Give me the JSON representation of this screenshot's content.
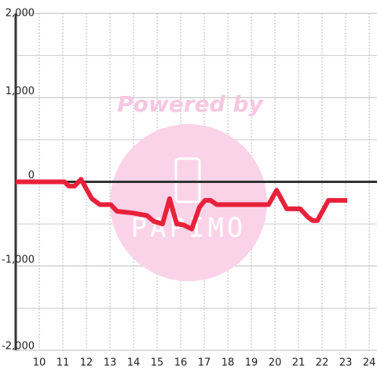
{
  "chart_data": {
    "type": "line",
    "watermark": "Powered by",
    "logo": "PAPIMO",
    "x": [
      9.0,
      11.07,
      11.25,
      11.5,
      11.77,
      12.23,
      12.57,
      13.03,
      13.3,
      13.97,
      14.57,
      14.87,
      15.23,
      15.53,
      15.83,
      16.1,
      16.47,
      16.8,
      17.03,
      17.27,
      17.53,
      19.73,
      20.07,
      20.5,
      21.07,
      21.4,
      21.6,
      21.8,
      22.27,
      23.07
    ],
    "series": [
      {
        "color": "#e8213a",
        "values": [
          0,
          0,
          -50,
          -50,
          30,
          -200,
          -270,
          -270,
          -350,
          -370,
          -400,
          -470,
          -500,
          -200,
          -500,
          -510,
          -560,
          -300,
          -220,
          -220,
          -270,
          -270,
          -100,
          -320,
          -320,
          -420,
          -460,
          -460,
          -220,
          -220
        ]
      }
    ],
    "xlim": [
      9,
      24.33
    ],
    "xticks": [
      10,
      11,
      12,
      13,
      14,
      15,
      16,
      17,
      18,
      19,
      20,
      21,
      22,
      23,
      24
    ],
    "ylim": [
      -2000,
      2000
    ],
    "yticks": [
      {
        "value": -2000,
        "label": "-2,000"
      },
      {
        "value": -1000,
        "label": "-1,000"
      },
      0,
      {
        "value": 1000,
        "label": "1,000"
      },
      {
        "value": 2000,
        "label": "2,000"
      }
    ],
    "y_minor_ticks": [
      -1500,
      -500,
      500,
      1500
    ],
    "grid": true
  }
}
